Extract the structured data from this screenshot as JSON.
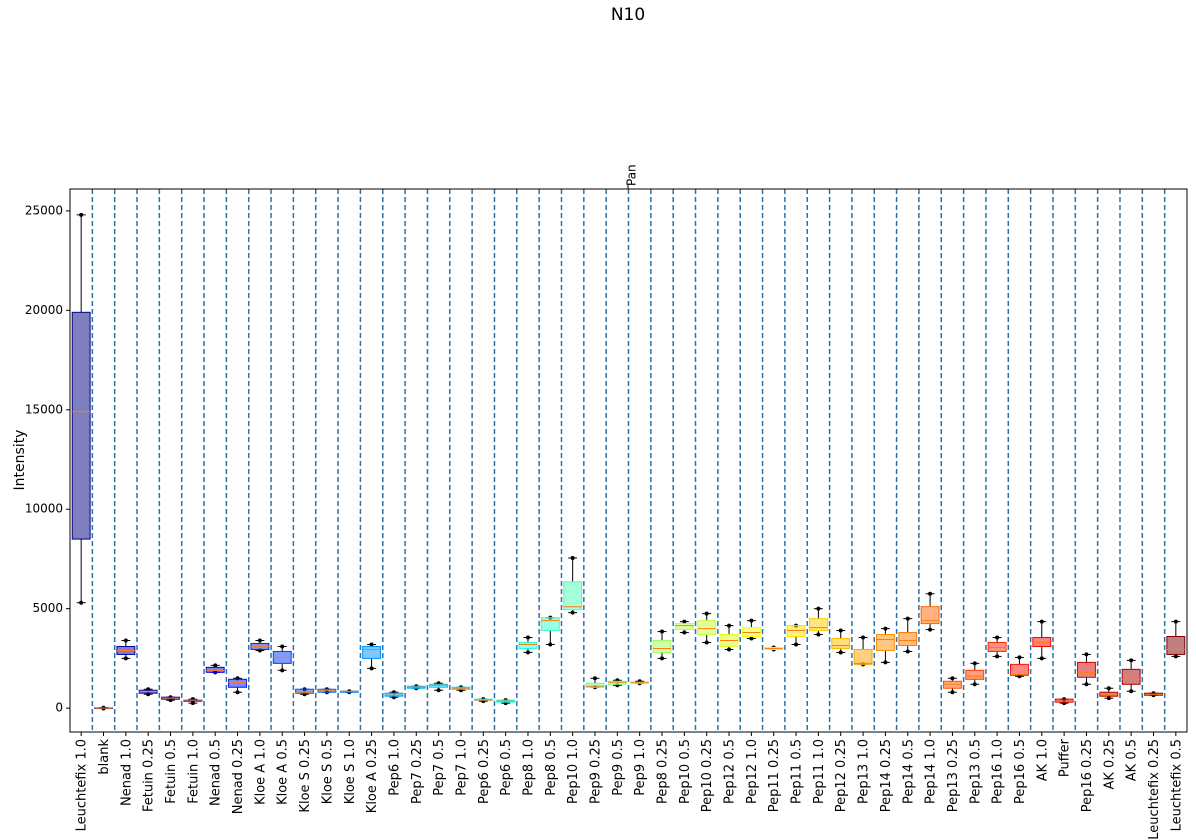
{
  "chart_data": {
    "type": "box",
    "title": "N10",
    "top_label": "Pan",
    "y_label": "Intensity",
    "categories": [
      "Leuchtefix 1.0",
      "blank",
      "Nenad 1.0",
      "Fetuin 0.25",
      "Fetuin 0.5",
      "Fetuin 1.0",
      "Nenad 0.5",
      "Nenad 0.25",
      "Kloe A 1.0",
      "Kloe A 0.5",
      "Kloe S 0.25",
      "Kloe S 0.5",
      "Kloe S 1.0",
      "Kloe A 0.25",
      "Pep6 1.0",
      "Pep7 0.25",
      "Pep7 0.5",
      "Pep7 1.0",
      "Pep6 0.25",
      "Pep6 0.5",
      "Pep8 1.0",
      "Pep8 0.5",
      "Pep10 1.0",
      "Pep9 0.25",
      "Pep9 0.5",
      "Pep9 1.0",
      "Pep8 0.25",
      "Pep10 0.5",
      "Pep10 0.25",
      "Pep12 0.5",
      "Pep12 1.0",
      "Pep11 0.25",
      "Pep11 0.5",
      "Pep11 1.0",
      "Pep12 0.25",
      "Pep13 1.0",
      "Pep14 0.25",
      "Pep14 0.5",
      "Pep14 1.0",
      "Pep13 0.25",
      "Pep13 0.5",
      "Pep16 1.0",
      "Pep16 0.5",
      "AK 1.0",
      "Puffer",
      "Pep16 0.25",
      "AK 0.25",
      "AK 0.5",
      "Leuchtefix 0.25",
      "Leuchtefix 0.5"
    ],
    "boxes": [
      {
        "whislo": 5300,
        "q1": 8500,
        "med": 14900,
        "q3": 19900,
        "whishi": 24800
      },
      {
        "whislo": -20,
        "q1": -10,
        "med": 0,
        "q3": 10,
        "whishi": 20
      },
      {
        "whislo": 2500,
        "q1": 2700,
        "med": 2900,
        "q3": 3100,
        "whishi": 3400
      },
      {
        "whislo": 700,
        "q1": 750,
        "med": 850,
        "q3": 900,
        "whishi": 950
      },
      {
        "whislo": 400,
        "q1": 450,
        "med": 500,
        "q3": 550,
        "whishi": 550
      },
      {
        "whislo": 250,
        "q1": 350,
        "med": 400,
        "q3": 400,
        "whishi": 450
      },
      {
        "whislo": 1800,
        "q1": 1800,
        "med": 1900,
        "q3": 2050,
        "whishi": 2150
      },
      {
        "whislo": 800,
        "q1": 1050,
        "med": 1300,
        "q3": 1450,
        "whishi": 1500
      },
      {
        "whislo": 2900,
        "q1": 2950,
        "med": 3100,
        "q3": 3250,
        "whishi": 3400
      },
      {
        "whislo": 1900,
        "q1": 2250,
        "med": 2550,
        "q3": 2850,
        "whishi": 3100
      },
      {
        "whislo": 700,
        "q1": 750,
        "med": 800,
        "q3": 950,
        "whishi": 950
      },
      {
        "whislo": 800,
        "q1": 800,
        "med": 900,
        "q3": 950,
        "whishi": 950
      },
      {
        "whislo": 800,
        "q1": 800,
        "med": 850,
        "q3": 850,
        "whishi": 850
      },
      {
        "whislo": 2000,
        "q1": 2500,
        "med": 2950,
        "q3": 3100,
        "whishi": 3200
      },
      {
        "whislo": 550,
        "q1": 600,
        "med": 650,
        "q3": 750,
        "whishi": 800
      },
      {
        "whislo": 1000,
        "q1": 1000,
        "med": 1050,
        "q3": 1100,
        "whishi": 1100
      },
      {
        "whislo": 900,
        "q1": 1050,
        "med": 1150,
        "q3": 1200,
        "whishi": 1250
      },
      {
        "whislo": 900,
        "q1": 950,
        "med": 1000,
        "q3": 1050,
        "whishi": 1050
      },
      {
        "whislo": 350,
        "q1": 400,
        "med": 400,
        "q3": 450,
        "whishi": 450
      },
      {
        "whislo": 250,
        "q1": 300,
        "med": 350,
        "q3": 400,
        "whishi": 400
      },
      {
        "whislo": 2800,
        "q1": 3000,
        "med": 3200,
        "q3": 3300,
        "whishi": 3550
      },
      {
        "whislo": 3200,
        "q1": 3900,
        "med": 4400,
        "q3": 4550,
        "whishi": 4550
      },
      {
        "whislo": 4800,
        "q1": 4950,
        "med": 5100,
        "q3": 6350,
        "whishi": 7550
      },
      {
        "whislo": 1050,
        "q1": 1050,
        "med": 1100,
        "q3": 1250,
        "whishi": 1500
      },
      {
        "whislo": 1150,
        "q1": 1200,
        "med": 1300,
        "q3": 1350,
        "whishi": 1400
      },
      {
        "whislo": 1250,
        "q1": 1250,
        "med": 1300,
        "q3": 1300,
        "whishi": 1350
      },
      {
        "whislo": 2500,
        "q1": 2800,
        "med": 3000,
        "q3": 3400,
        "whishi": 3850
      },
      {
        "whislo": 3800,
        "q1": 3950,
        "med": 4150,
        "q3": 4250,
        "whishi": 4350
      },
      {
        "whislo": 3300,
        "q1": 3700,
        "med": 4000,
        "q3": 4400,
        "whishi": 4750
      },
      {
        "whislo": 2950,
        "q1": 3100,
        "med": 3400,
        "q3": 3700,
        "whishi": 4150
      },
      {
        "whislo": 3500,
        "q1": 3600,
        "med": 3800,
        "q3": 4050,
        "whishi": 4400
      },
      {
        "whislo": 2950,
        "q1": 2950,
        "med": 3000,
        "q3": 3050,
        "whishi": 3050
      },
      {
        "whislo": 3200,
        "q1": 3600,
        "med": 3900,
        "q3": 4150,
        "whishi": 4150
      },
      {
        "whislo": 3700,
        "q1": 3900,
        "med": 4050,
        "q3": 4500,
        "whishi": 5000
      },
      {
        "whislo": 2800,
        "q1": 3000,
        "med": 3150,
        "q3": 3500,
        "whishi": 3900
      },
      {
        "whislo": 2200,
        "q1": 2200,
        "med": 2250,
        "q3": 2950,
        "whishi": 3550
      },
      {
        "whislo": 2300,
        "q1": 2900,
        "med": 3450,
        "q3": 3700,
        "whishi": 4000
      },
      {
        "whislo": 2850,
        "q1": 3150,
        "med": 3400,
        "q3": 3800,
        "whishi": 4500
      },
      {
        "whislo": 3950,
        "q1": 4250,
        "med": 4400,
        "q3": 5100,
        "whishi": 5750
      },
      {
        "whislo": 800,
        "q1": 1000,
        "med": 1200,
        "q3": 1350,
        "whishi": 1500
      },
      {
        "whislo": 1200,
        "q1": 1450,
        "med": 1600,
        "q3": 1900,
        "whishi": 2250
      },
      {
        "whislo": 2600,
        "q1": 2850,
        "med": 3050,
        "q3": 3300,
        "whishi": 3550
      },
      {
        "whislo": 1600,
        "q1": 1650,
        "med": 1700,
        "q3": 2200,
        "whishi": 2550
      },
      {
        "whislo": 2500,
        "q1": 3100,
        "med": 3300,
        "q3": 3550,
        "whishi": 4350
      },
      {
        "whislo": 250,
        "q1": 300,
        "med": 350,
        "q3": 450,
        "whishi": 450
      },
      {
        "whislo": 1200,
        "q1": 1550,
        "med": 1800,
        "q3": 2300,
        "whishi": 2700
      },
      {
        "whislo": 500,
        "q1": 600,
        "med": 700,
        "q3": 800,
        "whishi": 1000
      },
      {
        "whislo": 850,
        "q1": 1200,
        "med": 1450,
        "q3": 1950,
        "whishi": 2400
      },
      {
        "whislo": 650,
        "q1": 650,
        "med": 700,
        "q3": 750,
        "whishi": 750
      },
      {
        "whislo": 2600,
        "q1": 2700,
        "med": 2950,
        "q3": 3600,
        "whishi": 4350
      }
    ],
    "colormap": "jet",
    "alpha": 0.5,
    "median_color": "#ff7f0e",
    "separator_color": "#1f77b4",
    "ylim": [
      -1200,
      26100
    ],
    "yticks": [
      0,
      5000,
      10000,
      15000,
      20000,
      25000
    ]
  }
}
